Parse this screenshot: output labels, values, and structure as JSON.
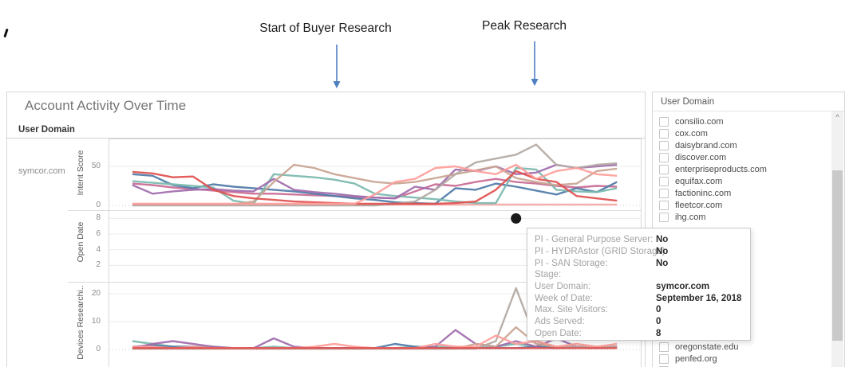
{
  "annotations": {
    "start": {
      "label": "Start of Buyer Research"
    },
    "peak": {
      "label": "Peak Research"
    },
    "arrow_color": "#4e7fc1"
  },
  "chart": {
    "title": "Account Activity Over Time",
    "dimension_header": "User Domain",
    "row_label": "symcor.com",
    "panes": [
      {
        "axis_label": "Intent Score"
      },
      {
        "axis_label": "Open Date"
      },
      {
        "axis_label": "Devices Researchi.."
      }
    ]
  },
  "chart_data": {
    "type": "line",
    "x_unit": "weeks",
    "row": "symcor.com",
    "panes": [
      {
        "name": "Intent Score",
        "ylim": [
          0,
          80
        ],
        "ticks": [
          50,
          0
        ],
        "series": [
          {
            "name": "flat-pink",
            "color": "#f2aaa6",
            "values": [
              2,
              1,
              1,
              1,
              1,
              1,
              1,
              1,
              1,
              1,
              1,
              1,
              1,
              1,
              1,
              1,
              1,
              1,
              1,
              1,
              1,
              1,
              1,
              1,
              1
            ]
          },
          {
            "name": "mauve",
            "color": "#c96a94",
            "values": [
              28,
              26,
              23,
              21,
              19,
              17,
              15,
              15,
              14,
              13,
              12,
              11,
              10,
              9,
              18,
              27,
              25,
              30,
              34,
              30,
              28,
              25,
              23,
              25,
              24
            ]
          },
          {
            "name": "blue",
            "color": "#4e79a7",
            "values": [
              40,
              38,
              26,
              22,
              27,
              24,
              22,
              20,
              18,
              15,
              12,
              9,
              7,
              4,
              3,
              2,
              22,
              20,
              28,
              24,
              19,
              14,
              22,
              17,
              30
            ]
          },
          {
            "name": "teal",
            "color": "#79b8ae",
            "values": [
              31,
              29,
              27,
              25,
              23,
              6,
              2,
              40,
              38,
              36,
              33,
              28,
              15,
              12,
              10,
              8,
              5,
              3,
              3,
              48,
              46,
              20,
              18,
              17,
              22
            ]
          },
          {
            "name": "purple",
            "color": "#a16bad",
            "values": [
              26,
              15,
              18,
              20,
              21,
              19,
              18,
              34,
              20,
              17,
              15,
              12,
              10,
              9,
              24,
              20,
              46,
              44,
              50,
              40,
              42,
              52,
              48,
              50,
              52
            ]
          },
          {
            "name": "tan",
            "color": "#c9a493",
            "values": [
              1,
              1,
              1,
              1,
              1,
              1,
              5,
              30,
              52,
              48,
              40,
              35,
              30,
              28,
              30,
              35,
              40,
              45,
              50,
              35,
              30,
              26,
              28,
              44,
              47
            ]
          },
          {
            "name": "gray-brown",
            "color": "#b3a8a2",
            "values": [
              0,
              0,
              0,
              0,
              0,
              0,
              0,
              0,
              0,
              0,
              0,
              0,
              0,
              2,
              5,
              20,
              40,
              55,
              60,
              65,
              78,
              52,
              48,
              52,
              54
            ]
          },
          {
            "name": "red",
            "color": "#e0504f",
            "values": [
              43,
              41,
              36,
              37,
              20,
              12,
              9,
              7,
              5,
              4,
              3,
              2,
              2,
              2,
              2,
              2,
              3,
              5,
              20,
              44,
              34,
              30,
              12,
              9,
              6
            ]
          },
          {
            "name": "salmon",
            "color": "#ff9d9a",
            "values": [
              2,
              2,
              2,
              2,
              2,
              2,
              2,
              2,
              2,
              2,
              2,
              2,
              14,
              30,
              34,
              48,
              50,
              44,
              40,
              52,
              34,
              44,
              48,
              40,
              38
            ]
          }
        ]
      },
      {
        "name": "Open Date",
        "ylim": [
          0,
          9
        ],
        "ticks": [
          8,
          6,
          4,
          2
        ],
        "series": [],
        "selected_point": {
          "x_index": 19,
          "value": 8,
          "color": "#1a1a1a"
        }
      },
      {
        "name": "Devices Researching",
        "ylim": [
          0,
          24
        ],
        "ticks": [
          20,
          10,
          0
        ],
        "series": [
          {
            "name": "teal",
            "color": "#79b8ae",
            "values": [
              3,
              2,
              1,
              1,
              1,
              0.5,
              0.5,
              1,
              0.5,
              0.5,
              0.5,
              0.5,
              0.5,
              0.5,
              1,
              1,
              1,
              0.5,
              1,
              2,
              1,
              1,
              1,
              1,
              1
            ]
          },
          {
            "name": "blue",
            "color": "#4e79a7",
            "values": [
              1,
              1.5,
              1,
              1,
              0.5,
              0.5,
              0.5,
              0.5,
              0.5,
              0.5,
              0.5,
              0.5,
              0.5,
              2,
              1,
              0.5,
              0.5,
              0.5,
              0.5,
              0.5,
              1,
              0.5,
              1,
              0.5,
              1
            ]
          },
          {
            "name": "purple",
            "color": "#a16bad",
            "values": [
              0.5,
              2,
              3,
              2,
              1,
              0.5,
              0.5,
              4,
              1,
              0.5,
              0.5,
              0.5,
              0.5,
              0.5,
              0.5,
              1,
              7,
              2,
              1,
              3,
              1,
              4,
              1,
              1,
              1
            ]
          },
          {
            "name": "tan",
            "color": "#c9a493",
            "values": [
              0.3,
              0.3,
              0.3,
              0.3,
              0.3,
              0.3,
              0.3,
              0.3,
              0.3,
              0.3,
              0.3,
              0.3,
              0.3,
              0.3,
              0.3,
              0.3,
              0.3,
              2,
              1,
              8,
              2,
              1,
              1,
              1,
              1
            ]
          },
          {
            "name": "gray-brown",
            "color": "#b3a8a2",
            "values": [
              0.3,
              0.3,
              0.3,
              0.3,
              0.3,
              0.3,
              0.3,
              0.3,
              0.3,
              0.3,
              0.3,
              0.3,
              0.3,
              0.3,
              0.3,
              0.3,
              0.3,
              0.3,
              3,
              22,
              3,
              1,
              1,
              1,
              1
            ]
          },
          {
            "name": "salmon",
            "color": "#ff9d9a",
            "values": [
              1,
              1,
              0.5,
              1,
              0.5,
              0.5,
              0.5,
              0.5,
              0.5,
              1,
              2,
              1,
              0.5,
              0.5,
              0.5,
              2,
              1,
              1,
              5,
              2,
              3,
              1,
              2,
              1,
              2
            ]
          },
          {
            "name": "red",
            "color": "#e0504f",
            "values": [
              0.5,
              0.5,
              0.5,
              0.5,
              0.5,
              0.5,
              0.5,
              0.5,
              0.5,
              0.5,
              0.5,
              0.5,
              0.5,
              0.5,
              0.5,
              0.5,
              0.5,
              0.5,
              0.5,
              0.5,
              0.5,
              0.5,
              0.5,
              0.5,
              0.5
            ]
          }
        ]
      }
    ]
  },
  "tooltip": {
    "rows": [
      {
        "label": "PI - General Purpose Server:",
        "value": "No"
      },
      {
        "label": "PI - HYDRAstor (GRID Storage):",
        "value": "No"
      },
      {
        "label": "PI - SAN Storage:",
        "value": "No"
      },
      {
        "label": "Stage:",
        "value": ""
      },
      {
        "label": "User Domain:",
        "value": "symcor.com"
      },
      {
        "label": "Week of Date:",
        "value": "September 16, 2018"
      },
      {
        "label": "Max. Site Visitors:",
        "value": "0"
      },
      {
        "label": "Ads Served:",
        "value": "0"
      },
      {
        "label": "Open Date:",
        "value": "8"
      }
    ]
  },
  "filter_panel": {
    "title": "User Domain",
    "scroll_up_glyph": "^",
    "items_top": [
      "consilio.com",
      "cox.com",
      "daisybrand.com",
      "discover.com",
      "enterpriseproducts.com",
      "equifax.com",
      "factioninc.com",
      "fleetcor.com",
      "ihg.com"
    ],
    "items_bottom": [
      "oregonstate.edu",
      "penfed.org"
    ]
  }
}
